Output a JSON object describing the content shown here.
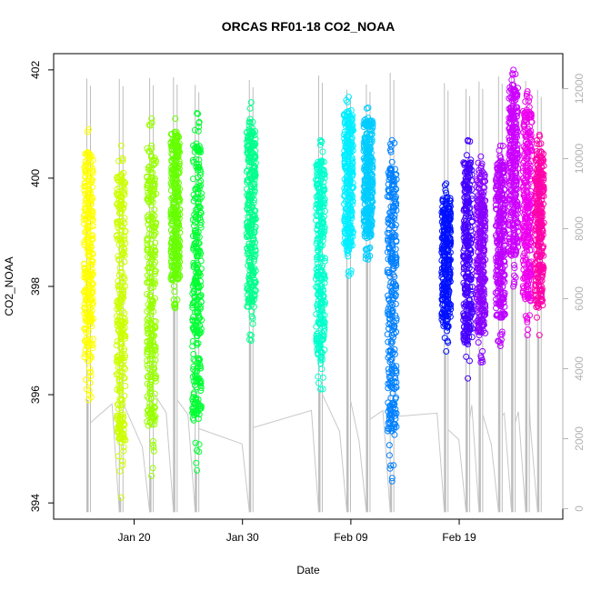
{
  "chart_data": {
    "type": "scatter",
    "title": "ORCAS RF01-18 CO2_NOAA",
    "xlabel": "Date",
    "ylabel": "CO2_NOAA",
    "x_ticks": [
      "Jan 20",
      "Jan 30",
      "Feb 09",
      "Feb 19"
    ],
    "x_tick_values": [
      20,
      30,
      40,
      50
    ],
    "xlim": [
      14.5,
      57.8
    ],
    "ylim": [
      393.7,
      402.3
    ],
    "y_ticks": [
      394,
      396,
      398,
      400,
      402
    ],
    "y2lim": [
      -300,
      13000
    ],
    "y2_ticks": [
      0,
      2000,
      4000,
      6000,
      8000,
      10000,
      12000
    ],
    "grid": false,
    "series": [
      {
        "color": "#FFFF00",
        "x": 15.8,
        "y_min": 395.9,
        "y_max": 400.9
      },
      {
        "color": "#CCFF00",
        "x": 18.8,
        "y_min": 394.1,
        "y_max": 400.6
      },
      {
        "color": "#99FF00",
        "x": 21.6,
        "y_min": 394.5,
        "y_max": 401.1
      },
      {
        "color": "#66FF00",
        "x": 23.8,
        "y_min": 397.6,
        "y_max": 401.1
      },
      {
        "color": "#00FF33",
        "x": 25.8,
        "y_min": 394.6,
        "y_max": 401.2
      },
      {
        "color": "#00FF8C",
        "x": 30.8,
        "y_min": 397.0,
        "y_max": 401.4
      },
      {
        "color": "#00FFCC",
        "x": 37.2,
        "y_min": 396.1,
        "y_max": 400.7
      },
      {
        "color": "#00EEFF",
        "x": 39.8,
        "y_min": 398.2,
        "y_max": 401.5
      },
      {
        "color": "#00CCFF",
        "x": 41.6,
        "y_min": 398.5,
        "y_max": 401.3
      },
      {
        "color": "#0080FF",
        "x": 43.8,
        "y_min": 394.4,
        "y_max": 400.7
      },
      {
        "color": "#0011FF",
        "x": 48.8,
        "y_min": 396.8,
        "y_max": 399.9
      },
      {
        "color": "#4400FF",
        "x": 50.8,
        "y_min": 396.3,
        "y_max": 400.7
      },
      {
        "color": "#8800FF",
        "x": 52.0,
        "y_min": 396.6,
        "y_max": 400.4
      },
      {
        "color": "#BB00FF",
        "x": 53.8,
        "y_min": 396.9,
        "y_max": 400.6
      },
      {
        "color": "#CC00FF",
        "x": 55.0,
        "y_min": 398.0,
        "y_max": 402.0
      },
      {
        "color": "#EE00EE",
        "x": 56.3,
        "y_min": 397.1,
        "y_max": 401.6
      },
      {
        "color": "#FF00AA",
        "x": 57.4,
        "y_min": 397.1,
        "y_max": 400.8
      }
    ]
  }
}
